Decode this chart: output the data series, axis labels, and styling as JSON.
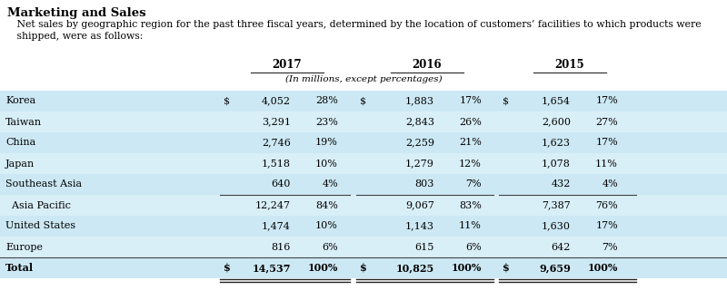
{
  "title": "Marketing and Sales",
  "subtitle_line1": "   Net sales by geographic region for the past three fiscal years, determined by the location of customers’ facilities to which products were",
  "subtitle_line2": "   shipped, were as follows:",
  "col_headers": [
    "2017",
    "2016",
    "2015"
  ],
  "subheader": "(In millions, except percentages)",
  "rows": [
    {
      "label": "Korea",
      "dollar1": true,
      "v2017": "4,052",
      "p2017": "28%",
      "dollar2": true,
      "v2016": "1,883",
      "p2016": "17%",
      "dollar3": true,
      "v2015": "1,654",
      "p2015": "17%",
      "indent": false,
      "bold": false,
      "se_border": false
    },
    {
      "label": "Taiwan",
      "dollar1": false,
      "v2017": "3,291",
      "p2017": "23%",
      "dollar2": false,
      "v2016": "2,843",
      "p2016": "26%",
      "dollar3": false,
      "v2015": "2,600",
      "p2015": "27%",
      "indent": false,
      "bold": false,
      "se_border": false
    },
    {
      "label": "China",
      "dollar1": false,
      "v2017": "2,746",
      "p2017": "19%",
      "dollar2": false,
      "v2016": "2,259",
      "p2016": "21%",
      "dollar3": false,
      "v2015": "1,623",
      "p2015": "17%",
      "indent": false,
      "bold": false,
      "se_border": false
    },
    {
      "label": "Japan",
      "dollar1": false,
      "v2017": "1,518",
      "p2017": "10%",
      "dollar2": false,
      "v2016": "1,279",
      "p2016": "12%",
      "dollar3": false,
      "v2015": "1,078",
      "p2015": "11%",
      "indent": false,
      "bold": false,
      "se_border": false
    },
    {
      "label": "Southeast Asia",
      "dollar1": false,
      "v2017": "640",
      "p2017": "4%",
      "dollar2": false,
      "v2016": "803",
      "p2016": "7%",
      "dollar3": false,
      "v2015": "432",
      "p2015": "4%",
      "indent": false,
      "bold": false,
      "se_border": true
    },
    {
      "label": "  Asia Pacific",
      "dollar1": false,
      "v2017": "12,247",
      "p2017": "84%",
      "dollar2": false,
      "v2016": "9,067",
      "p2016": "83%",
      "dollar3": false,
      "v2015": "7,387",
      "p2015": "76%",
      "indent": false,
      "bold": false,
      "se_border": false
    },
    {
      "label": "United States",
      "dollar1": false,
      "v2017": "1,474",
      "p2017": "10%",
      "dollar2": false,
      "v2016": "1,143",
      "p2016": "11%",
      "dollar3": false,
      "v2015": "1,630",
      "p2015": "17%",
      "indent": false,
      "bold": false,
      "se_border": false
    },
    {
      "label": "Europe",
      "dollar1": false,
      "v2017": "816",
      "p2017": "6%",
      "dollar2": false,
      "v2016": "615",
      "p2016": "6%",
      "dollar3": false,
      "v2015": "642",
      "p2015": "7%",
      "indent": false,
      "bold": false,
      "se_border": false
    },
    {
      "label": "Total",
      "dollar1": true,
      "v2017": "14,537",
      "p2017": "100%",
      "dollar2": true,
      "v2016": "10,825",
      "p2016": "100%",
      "dollar3": true,
      "v2015": "9,659",
      "p2015": "100%",
      "indent": false,
      "bold": true,
      "se_border": false
    }
  ],
  "bg_colors": [
    "#cce8f4",
    "#d9eff8"
  ],
  "text_color": "#000000",
  "font_size": 8.0,
  "header_font_size": 8.5,
  "title_font_size": 9.5,
  "col_underline_color": "#333333",
  "border_color": "#444444",
  "double_border_color": "#222222"
}
